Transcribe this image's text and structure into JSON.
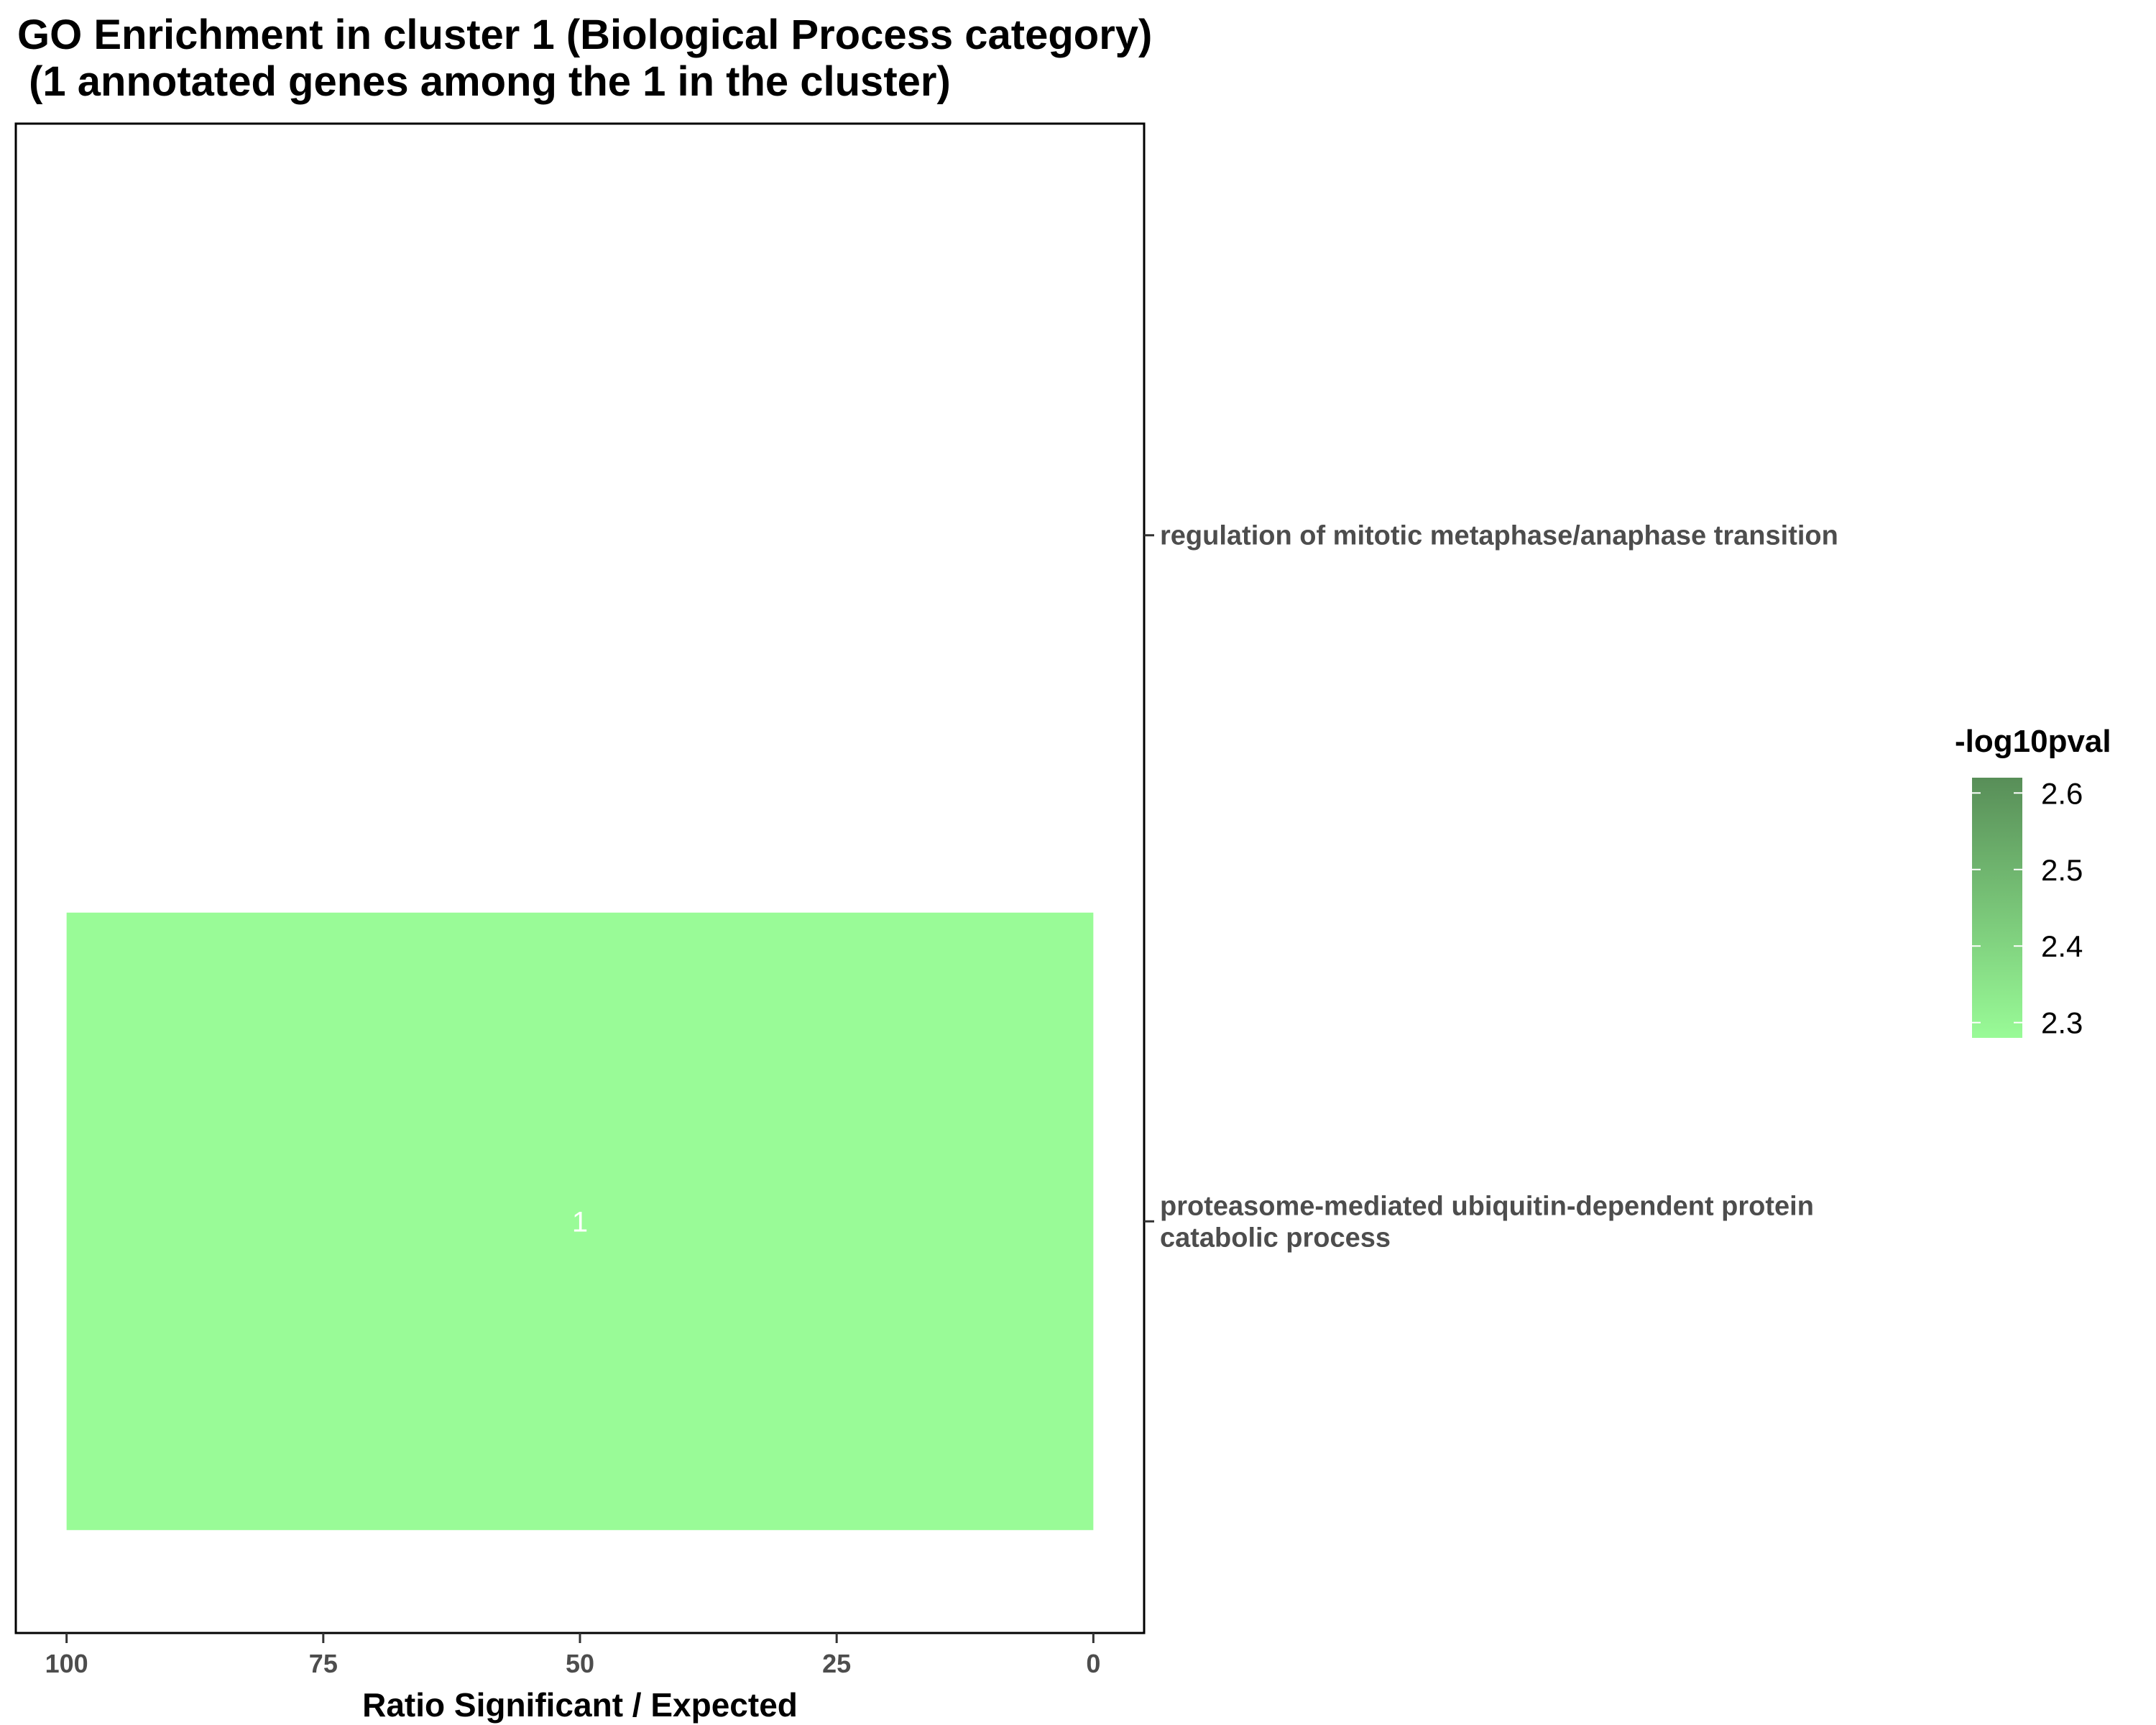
{
  "chart_data": {
    "type": "bar",
    "orientation": "horizontal",
    "title_lines": [
      "GO Enrichment in cluster 1 (Biological Process category)",
      " (1 annotated genes among the 1 in the cluster)"
    ],
    "xlabel": "Ratio Significant / Expected",
    "ylabel": "",
    "x_reversed": true,
    "xlim": [
      0,
      100
    ],
    "x_ticks": [
      100,
      75,
      50,
      25,
      0
    ],
    "categories": [
      [
        "regulation of mitotic metaphase/anaphase transition"
      ],
      [
        "proteasome-mediated ubiquitin-dependent protein",
        "catabolic process"
      ]
    ],
    "values": [
      0,
      100
    ],
    "bar_labels": [
      "",
      "1"
    ],
    "neglog10pval": [
      2.62,
      2.28
    ],
    "legend": {
      "title": "-log10pval",
      "ticks": [
        "2.6",
        "2.5",
        "2.4",
        "2.3"
      ],
      "tick_values": [
        2.6,
        2.5,
        2.4,
        2.3
      ],
      "range": [
        2.28,
        2.62
      ],
      "color_low": "#99fb97",
      "color_high": "#588e58",
      "placement": "right"
    },
    "grid": false
  }
}
